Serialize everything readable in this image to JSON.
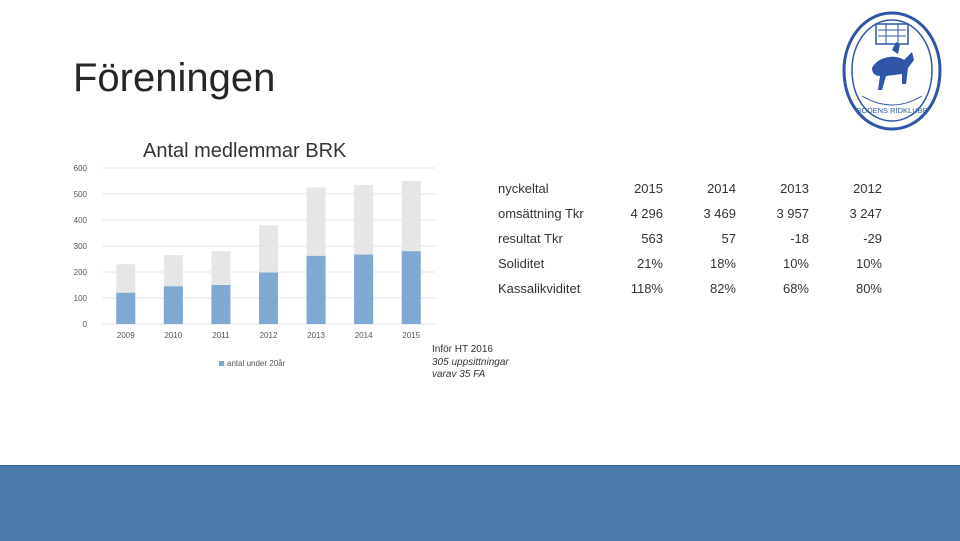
{
  "slide": {
    "title": "Föreningen"
  },
  "colors": {
    "under20": "#7fa9d2",
    "total": "#e6e6e6",
    "footer": "#4a7aaa",
    "logo": "#2f56a6"
  },
  "logo": {
    "icon": "horse-rider-club-seal-icon",
    "text": "BODENS RIDKLUBB"
  },
  "chart_data": {
    "type": "bar",
    "title": "Antal medlemmar BRK",
    "categories": [
      "2009",
      "2010",
      "2011",
      "2012",
      "2013",
      "2014",
      "2015"
    ],
    "series": [
      {
        "name": "",
        "values": [
          230,
          265,
          280,
          380,
          525,
          535,
          550
        ]
      },
      {
        "name": "antal under 20år",
        "values": [
          120,
          145,
          150,
          198,
          262,
          267,
          280
        ]
      }
    ],
    "yticks": [
      "0",
      "100",
      "200",
      "300",
      "400",
      "500",
      "600"
    ],
    "ylim": [
      0,
      600
    ],
    "grid": true,
    "legend": "bottom"
  },
  "note": {
    "line1": "Inför HT 2016",
    "line2": "305 uppsittningar",
    "line3": "varav 35 FA"
  },
  "kpi_table": {
    "header": [
      "nyckeltal",
      "2015",
      "2014",
      "2013",
      "2012"
    ],
    "rows": [
      [
        "omsättning Tkr",
        "4 296",
        "3 469",
        "3 957",
        "3 247"
      ],
      [
        "resultat Tkr",
        "563",
        "57",
        "-18",
        "-29"
      ],
      [
        "Soliditet",
        "21%",
        "18%",
        "10%",
        "10%"
      ],
      [
        "Kassalikviditet",
        "118%",
        "82%",
        "68%",
        "80%"
      ]
    ]
  }
}
